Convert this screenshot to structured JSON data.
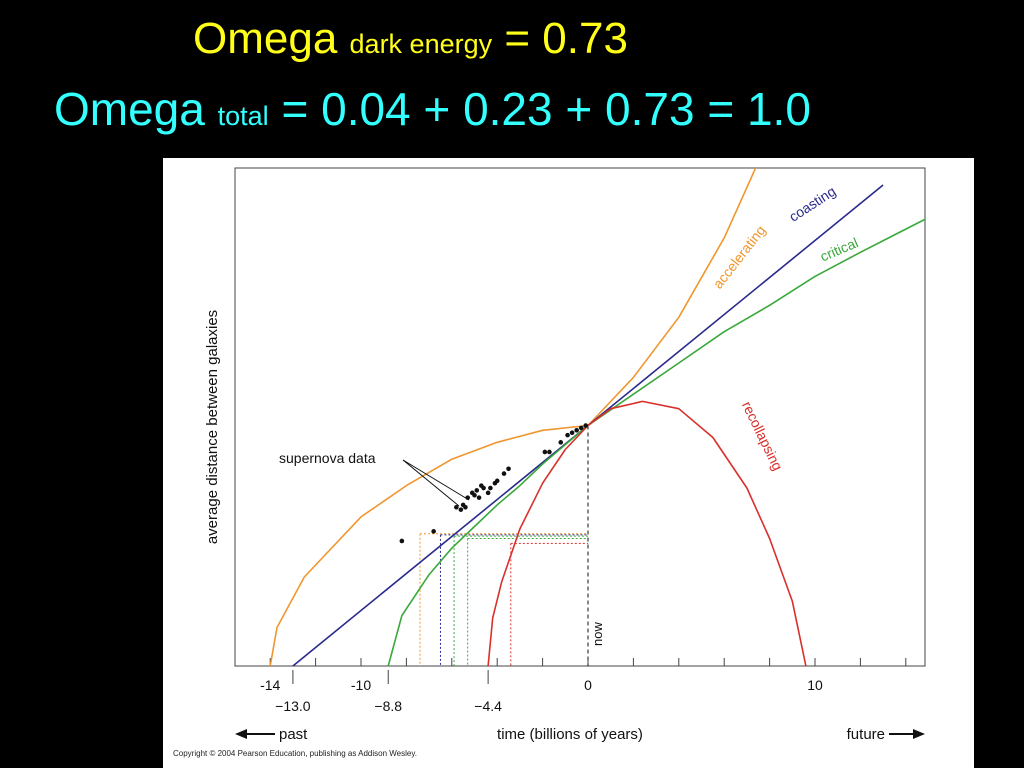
{
  "header": {
    "line1": {
      "main": "Omega",
      "sub": "dark energy",
      "rest": "= 0.73"
    },
    "line2": {
      "main": "Omega",
      "sub": "total",
      "rest": "= 0.04 + 0.23 + 0.73 = 1.0"
    }
  },
  "colors": {
    "background": "#000000",
    "line1": "#ffff1a",
    "line2": "#33ffff",
    "accelerating": "#f0962d",
    "coasting": "#2a2a8c",
    "critical": "#3aa83a",
    "recollapsing": "#d9302b"
  },
  "chart_data": {
    "type": "line",
    "xlabel": "time (billions of years)",
    "ylabel": "average distance between galaxies",
    "past_label": "past",
    "future_label": "future",
    "xlim": [
      -16,
      15
    ],
    "ylim": [
      0,
      2.2
    ],
    "ticks_major": [
      "-14",
      "-10",
      "0",
      "10"
    ],
    "ticks_major_values": [
      -14,
      -10,
      0,
      10
    ],
    "ticks_minor_labels": [
      "−13.0",
      "−8.8",
      "−4.4"
    ],
    "ticks_minor_values": [
      -13.0,
      -8.8,
      -4.4
    ],
    "series": [
      {
        "name": "accelerating",
        "color": "#f0962d",
        "start": -14.0,
        "end": 9.3,
        "points": [
          [
            -14.0,
            0.0
          ],
          [
            -13.7,
            0.16
          ],
          [
            -12.5,
            0.37
          ],
          [
            -10,
            0.62
          ],
          [
            -8,
            0.75
          ],
          [
            -6,
            0.86
          ],
          [
            -4,
            0.93
          ],
          [
            -2,
            0.98
          ],
          [
            0,
            1.0
          ],
          [
            2,
            1.2
          ],
          [
            4,
            1.45
          ],
          [
            6,
            1.78
          ],
          [
            8,
            2.2
          ],
          [
            9.3,
            2.52
          ]
        ]
      },
      {
        "name": "coasting",
        "color": "#2a2a8c",
        "start": -13.0,
        "end": 13.0,
        "points": [
          [
            -13.0,
            0.0
          ],
          [
            0,
            1.0
          ],
          [
            13.0,
            2.0
          ]
        ]
      },
      {
        "name": "critical",
        "color": "#3aa83a",
        "start": -8.8,
        "end": 14.9,
        "points": [
          [
            -8.8,
            0.0
          ],
          [
            -8.2,
            0.21
          ],
          [
            -7,
            0.38
          ],
          [
            -6,
            0.49
          ],
          [
            -5,
            0.58
          ],
          [
            -4,
            0.67
          ],
          [
            -3,
            0.75
          ],
          [
            -2,
            0.84
          ],
          [
            -1,
            0.92
          ],
          [
            0,
            1.0
          ],
          [
            2,
            1.13
          ],
          [
            4,
            1.26
          ],
          [
            6,
            1.39
          ],
          [
            8,
            1.5
          ],
          [
            10,
            1.62
          ],
          [
            12,
            1.72
          ],
          [
            14.9,
            1.86
          ]
        ]
      },
      {
        "name": "recollapsing",
        "color": "#d9302b",
        "start": -4.4,
        "end": 9.6,
        "points": [
          [
            -4.4,
            0.0
          ],
          [
            -4.2,
            0.2
          ],
          [
            -3.8,
            0.35
          ],
          [
            -3,
            0.57
          ],
          [
            -2,
            0.76
          ],
          [
            -1,
            0.9
          ],
          [
            0,
            1.0
          ],
          [
            1,
            1.07
          ],
          [
            2.4,
            1.1
          ],
          [
            4,
            1.07
          ],
          [
            5.5,
            0.95
          ],
          [
            7,
            0.74
          ],
          [
            8,
            0.53
          ],
          [
            9,
            0.27
          ],
          [
            9.6,
            0.0
          ]
        ]
      }
    ],
    "markers": [
      {
        "label": "now",
        "x": 0,
        "y": 1.0
      }
    ],
    "dropdowns": [
      {
        "x": -7.4,
        "y": 0.55,
        "color": "#f0962d"
      },
      {
        "x": -6.5,
        "y": 0.545,
        "color": "#2a2a8c"
      },
      {
        "x": -5.9,
        "y": 0.54,
        "color": "#3aa83a"
      },
      {
        "x": -5.3,
        "y": 0.53,
        "color": "#3aa83a"
      },
      {
        "x": -3.4,
        "y": 0.51,
        "color": "#d9302b"
      }
    ],
    "supernova_label": "supernova data",
    "supernova_points": [
      [
        -8.2,
        0.52
      ],
      [
        -6.8,
        0.56
      ],
      [
        -5.8,
        0.66
      ],
      [
        -5.6,
        0.65
      ],
      [
        -5.5,
        0.67
      ],
      [
        -5.4,
        0.66
      ],
      [
        -5.3,
        0.7
      ],
      [
        -5.1,
        0.72
      ],
      [
        -5.0,
        0.71
      ],
      [
        -4.9,
        0.73
      ],
      [
        -4.8,
        0.7
      ],
      [
        -4.7,
        0.75
      ],
      [
        -4.6,
        0.74
      ],
      [
        -4.4,
        0.72
      ],
      [
        -4.3,
        0.74
      ],
      [
        -4.1,
        0.76
      ],
      [
        -4.0,
        0.77
      ],
      [
        -3.7,
        0.8
      ],
      [
        -3.5,
        0.82
      ],
      [
        -1.9,
        0.89
      ],
      [
        -1.7,
        0.89
      ],
      [
        -1.2,
        0.93
      ],
      [
        -0.9,
        0.96
      ],
      [
        -0.7,
        0.97
      ],
      [
        -0.5,
        0.98
      ],
      [
        -0.3,
        0.99
      ],
      [
        -0.1,
        1.0
      ]
    ]
  },
  "copyright": "Copyright © 2004 Pearson Education, publishing as Addison Wesley."
}
